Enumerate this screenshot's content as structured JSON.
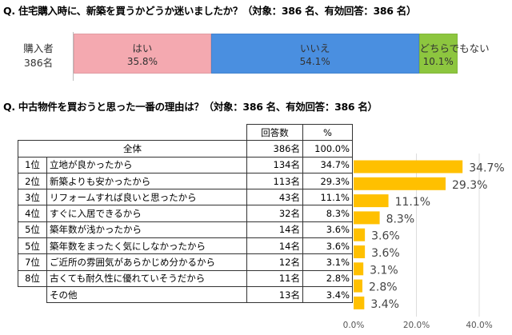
{
  "q1": {
    "title": "Q.  住宅購入時に、新築を買うかどうか迷いましたか？（対象：386 名、有効回答：386 名）",
    "category": [
      "購入者",
      "386名"
    ],
    "segments": [
      {
        "label": "はい",
        "value": 35.8,
        "text": "35.8%",
        "color": "#F4A9B0"
      },
      {
        "label": "いいえ",
        "value": 54.1,
        "text": "54.1%",
        "color": "#4A8FE0"
      },
      {
        "label": "どちらでもない",
        "value": 10.1,
        "text": "10.1%",
        "color": "#8DC63F"
      }
    ]
  },
  "q2": {
    "title": "Q.  中古物件を買おうと思った一番の理由は？（対象：386 名、有効回答：386 名）",
    "headers": {
      "count": "回答数",
      "pct": "%"
    },
    "total": {
      "label": "全体",
      "count": "386名",
      "pct": "100.0%"
    },
    "rows": [
      {
        "rank": "1位",
        "reason": "立地が良かったから",
        "count": "134名",
        "pct": "34.7%"
      },
      {
        "rank": "2位",
        "reason": "新築よりも安かったから",
        "count": "113名",
        "pct": "29.3%"
      },
      {
        "rank": "3位",
        "reason": "リフォームすれば良いと思ったから",
        "count": "43名",
        "pct": "11.1%"
      },
      {
        "rank": "4位",
        "reason": "すぐに入居できるから",
        "count": "32名",
        "pct": "8.3%"
      },
      {
        "rank": "5位",
        "reason": "築年数が浅かったから",
        "count": "14名",
        "pct": "3.6%"
      },
      {
        "rank": "5位",
        "reason": "築年数をまったく気にしなかったから",
        "count": "14名",
        "pct": "3.6%"
      },
      {
        "rank": "7位",
        "reason": "ご近所の雰囲気があらかじめ分かるから",
        "count": "12名",
        "pct": "3.1%"
      },
      {
        "rank": "8位",
        "reason": "古くても耐久性に優れていそうだから",
        "count": "11名",
        "pct": "2.8%"
      },
      {
        "rank": "",
        "reason": "その他",
        "count": "13名",
        "pct": "3.4%"
      }
    ]
  },
  "chart_data": [
    {
      "type": "bar",
      "orientation": "horizontal",
      "stacked": true,
      "categories": [
        "購入者 386名"
      ],
      "series": [
        {
          "name": "はい",
          "values": [
            35.8
          ]
        },
        {
          "name": "いいえ",
          "values": [
            54.1
          ]
        },
        {
          "name": "どちらでもない",
          "values": [
            10.1
          ]
        }
      ],
      "xlim": [
        0,
        100
      ]
    },
    {
      "type": "bar",
      "orientation": "horizontal",
      "categories": [
        "立地が良かったから",
        "新築よりも安かったから",
        "リフォームすれば良いと思ったから",
        "すぐに入居できるから",
        "築年数が浅かったから",
        "築年数をまったく気にしなかったから",
        "ご近所の雰囲気があらかじめ分かるから",
        "古くても耐久性に優れていそうだから",
        "その他"
      ],
      "values": [
        34.7,
        29.3,
        11.1,
        8.3,
        3.6,
        3.6,
        3.1,
        2.8,
        3.4
      ],
      "data_labels": [
        "34.7%",
        "29.3%",
        "11.1%",
        "8.3%",
        "3.6%",
        "3.6%",
        "3.1%",
        "2.8%",
        "3.4%"
      ],
      "xticks": [
        "0.0%",
        "20.0%",
        "40.0%"
      ],
      "xlim": [
        0,
        40
      ],
      "grid": true,
      "color": "#FFC000"
    }
  ]
}
